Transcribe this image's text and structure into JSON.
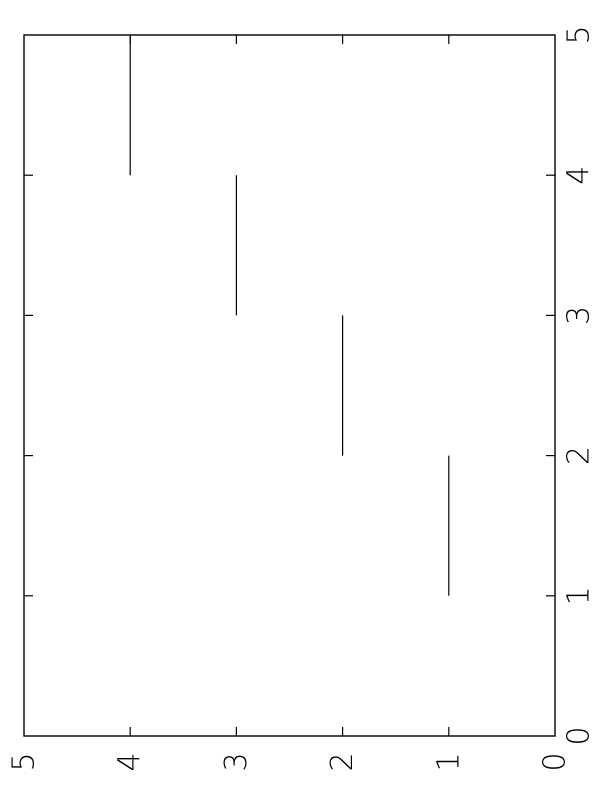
{
  "chart_data": {
    "type": "line",
    "orientation": "rotated-90-clockwise",
    "title": "",
    "xlabel": "",
    "ylabel": "",
    "xlim": [
      0,
      5
    ],
    "ylim": [
      0,
      5
    ],
    "grid": false,
    "legend": "none",
    "x_ticks": [
      "0",
      "1",
      "2",
      "3",
      "4",
      "5"
    ],
    "y_ticks": [
      "0",
      "1",
      "2",
      "3",
      "4",
      "5"
    ],
    "segments": [
      {
        "x": [
          1,
          2
        ],
        "y": [
          1,
          1
        ]
      },
      {
        "x": [
          2,
          3
        ],
        "y": [
          2,
          2
        ]
      },
      {
        "x": [
          3,
          4
        ],
        "y": [
          3,
          3
        ]
      },
      {
        "x": [
          4,
          5
        ],
        "y": [
          4,
          4
        ]
      }
    ],
    "line_color": "#000000",
    "axis_color": "#000000"
  }
}
